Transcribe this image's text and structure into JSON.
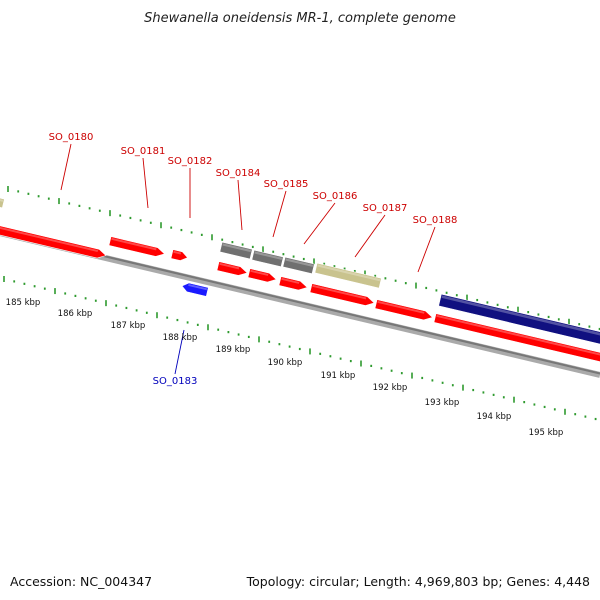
{
  "title": "Shewanella oneidensis MR-1, complete genome",
  "accession": "Accession: NC_004347",
  "summary": "Topology: circular; Length: 4,969,803 bp; Genes: 4,448",
  "colors": {
    "forward_gene": "#ff0000",
    "reverse_gene": "#1a1aff",
    "grey_feature": "#707070",
    "tan_feature": "#c9c38e",
    "navy_feature": "#101080",
    "backbone": "#888888",
    "tick": "#2e9a2e",
    "forward_label": "#cc0000",
    "reverse_label": "#0000bb"
  },
  "gene_labels": [
    {
      "id": "SO_0180",
      "strand": "forward"
    },
    {
      "id": "SO_0181",
      "strand": "forward"
    },
    {
      "id": "SO_0182",
      "strand": "forward"
    },
    {
      "id": "SO_0184",
      "strand": "forward"
    },
    {
      "id": "SO_0185",
      "strand": "forward"
    },
    {
      "id": "SO_0186",
      "strand": "forward"
    },
    {
      "id": "SO_0187",
      "strand": "forward"
    },
    {
      "id": "SO_0188",
      "strand": "forward"
    },
    {
      "id": "SO_0183",
      "strand": "reverse"
    }
  ],
  "ruler_labels": [
    "185 kbp",
    "186 kbp",
    "187 kbp",
    "188 kbp",
    "189 kbp",
    "190 kbp",
    "191 kbp",
    "192 kbp",
    "193 kbp",
    "194 kbp",
    "195 kbp"
  ]
}
